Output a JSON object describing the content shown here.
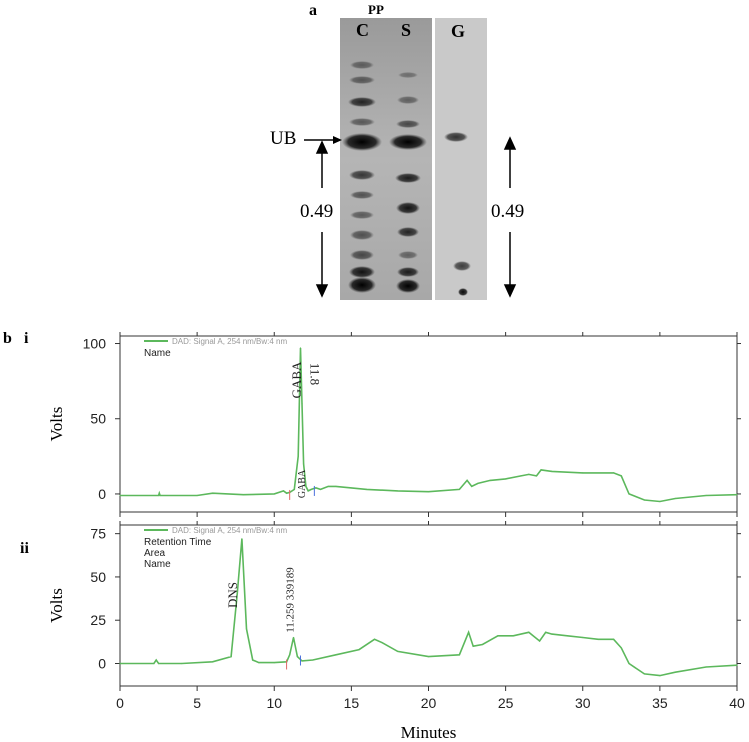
{
  "panel_a": {
    "letter": "a",
    "pp_label": "PP",
    "lanes": [
      "C",
      "S",
      "G"
    ],
    "ub_label": "UB",
    "rf_left": "0.49",
    "rf_right": "0.49"
  },
  "panel_b": {
    "letter": "b",
    "sub_i": "i",
    "sub_ii": "ii"
  },
  "chart_data": [
    {
      "type": "line",
      "panel": "i",
      "legend": "DAD: Signal A, 254 nm/Bw:4 nm",
      "legend_fields": [
        "Name"
      ],
      "ylabel": "Volts",
      "ylim": [
        -12,
        105
      ],
      "yticks": [
        0,
        50,
        100
      ],
      "xlim": [
        0,
        40
      ],
      "annotations": [
        {
          "text": "GABA",
          "x": 11.75
        },
        {
          "text": "11.8",
          "x": 12.35
        },
        {
          "text": "GABA",
          "x": 12.0
        }
      ],
      "series": [
        {
          "color": "#5cb85c",
          "x": [
            0,
            2.5,
            2.55,
            2.6,
            5,
            6,
            8,
            10,
            10.6,
            10.8,
            11.0,
            11.3,
            11.55,
            11.7,
            11.8,
            11.9,
            12.05,
            12.2,
            12.4,
            12.7,
            13,
            13.5,
            14,
            15,
            16,
            18,
            20,
            22,
            22.5,
            22.8,
            23.2,
            24,
            25,
            26,
            26.5,
            27,
            27.3,
            28,
            30,
            32,
            32.5,
            33,
            34,
            35,
            36,
            38,
            40
          ],
          "y": [
            -1,
            -1,
            0.5,
            -1,
            -1,
            0.5,
            -0.5,
            0,
            2,
            0.5,
            1,
            3,
            25,
            97,
            60,
            20,
            5,
            2,
            3,
            4,
            3,
            5,
            5,
            4,
            3,
            2,
            1.5,
            3,
            9,
            5,
            7,
            9,
            10,
            12,
            13,
            12,
            16,
            15,
            14,
            14,
            12,
            0,
            -4,
            -5,
            -3,
            -1,
            -0.5
          ]
        }
      ]
    },
    {
      "type": "line",
      "panel": "ii",
      "legend": "DAD: Signal A, 254 nm/Bw:4 nm",
      "legend_fields": [
        "Retention Time",
        "Area",
        "Name"
      ],
      "ylabel": "Volts",
      "xlabel": "Minutes",
      "ylim": [
        -13,
        80
      ],
      "yticks": [
        0,
        25,
        50,
        75
      ],
      "xlim": [
        0,
        40
      ],
      "xticks": [
        0,
        5,
        10,
        15,
        20,
        25,
        30,
        35,
        40
      ],
      "annotations": [
        {
          "text": "DNS",
          "x": 7.6
        },
        {
          "text": "11.259  339189",
          "x": 11.25
        }
      ],
      "series": [
        {
          "color": "#5cb85c",
          "x": [
            0,
            2.2,
            2.35,
            2.5,
            4,
            6,
            7.2,
            7.6,
            7.9,
            8.2,
            8.6,
            9,
            10,
            10.8,
            11.0,
            11.25,
            11.5,
            11.8,
            12.5,
            14,
            15.5,
            16.5,
            17,
            18,
            20,
            22,
            22.6,
            22.9,
            23.5,
            24.5,
            25.5,
            26.5,
            27.2,
            27.6,
            28,
            29,
            30,
            31,
            32,
            32.5,
            33,
            34,
            35,
            36,
            38,
            40
          ],
          "y": [
            0,
            0,
            2,
            0,
            0,
            1,
            4,
            40,
            72,
            20,
            2,
            0.5,
            0.5,
            1,
            5,
            15,
            4,
            1.5,
            2,
            5,
            8,
            14,
            12,
            7,
            4,
            5,
            18,
            10,
            11,
            16,
            16,
            18,
            13,
            18,
            17,
            16,
            15,
            14,
            14,
            9,
            0,
            -6,
            -7,
            -5,
            -2,
            -1
          ]
        }
      ]
    }
  ]
}
